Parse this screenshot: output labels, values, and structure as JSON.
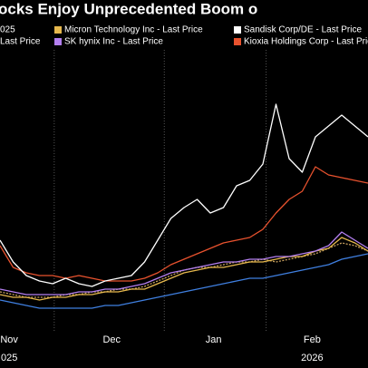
{
  "chart_data": {
    "type": "line",
    "title": "ocks Enjoy Unprecedented Boom o",
    "xlim": [
      0,
      112
    ],
    "ylim": [
      0,
      100
    ],
    "x": [
      0,
      4,
      8,
      12,
      16,
      20,
      24,
      28,
      32,
      36,
      40,
      44,
      48,
      52,
      56,
      60,
      64,
      68,
      72,
      76,
      80,
      84,
      88,
      92,
      96,
      100,
      104,
      108,
      112
    ],
    "x_labels": [
      {
        "value": 2.8,
        "label": "Nov"
      },
      {
        "value": 34,
        "label": "Dec"
      },
      {
        "value": 65,
        "label": "Jan"
      },
      {
        "value": 95,
        "label": "Feb"
      }
    ],
    "year_labels": [
      {
        "value": 2.8,
        "label": "025"
      },
      {
        "value": 95,
        "label": "2026"
      }
    ],
    "x_gridlines": [
      16.5,
      50,
      81
    ],
    "series": [
      {
        "name": "025",
        "color": "#c9a15e",
        "dash": true,
        "values": [
          11,
          10,
          9,
          9,
          9,
          10,
          10,
          11,
          11,
          12,
          12,
          13,
          15,
          17,
          19,
          20,
          20,
          21,
          22,
          22,
          23,
          22,
          23,
          24,
          25,
          27,
          29,
          28,
          26
        ]
      },
      {
        "name": "Micron Technology Inc - Last Price",
        "color": "#e6b84d",
        "dash": false,
        "values": [
          10,
          9,
          9,
          8,
          9,
          9,
          10,
          10,
          11,
          11,
          12,
          12,
          14,
          16,
          18,
          19,
          20,
          20,
          21,
          22,
          22,
          23,
          24,
          24,
          26,
          27,
          31,
          29,
          26
        ]
      },
      {
        "name": "Sandisk Corp/DE - Last Price",
        "color": "#ffffff",
        "dash": false,
        "values": [
          30,
          22,
          17,
          15,
          14,
          16,
          14,
          13,
          15,
          16,
          17,
          22,
          30,
          38,
          42,
          45,
          40,
          42,
          50,
          52,
          58,
          80,
          60,
          55,
          68,
          72,
          76,
          72,
          68
        ]
      },
      {
        "name": "Last Price",
        "color": "#3f7fe0",
        "dash": false,
        "values": [
          8,
          7,
          6,
          5,
          5,
          5,
          5,
          5,
          6,
          6,
          7,
          8,
          9,
          10,
          11,
          12,
          13,
          14,
          15,
          16,
          16,
          17,
          18,
          19,
          20,
          21,
          23,
          24,
          25
        ]
      },
      {
        "name": "SK hynix Inc - Last Price",
        "color": "#b37ff0",
        "dash": false,
        "values": [
          12,
          11,
          10,
          10,
          10,
          10,
          11,
          11,
          12,
          12,
          13,
          14,
          16,
          18,
          19,
          20,
          21,
          22,
          22,
          23,
          23,
          24,
          24,
          25,
          26,
          28,
          33,
          30,
          27
        ]
      },
      {
        "name": "Kioxia Holdings Corp - Last Price",
        "color": "#e8522e",
        "dash": false,
        "values": [
          28,
          20,
          18,
          17,
          17,
          16,
          17,
          16,
          15,
          15,
          15,
          16,
          18,
          21,
          23,
          25,
          27,
          29,
          30,
          31,
          34,
          40,
          45,
          48,
          57,
          54,
          53,
          52,
          51
        ]
      }
    ]
  }
}
